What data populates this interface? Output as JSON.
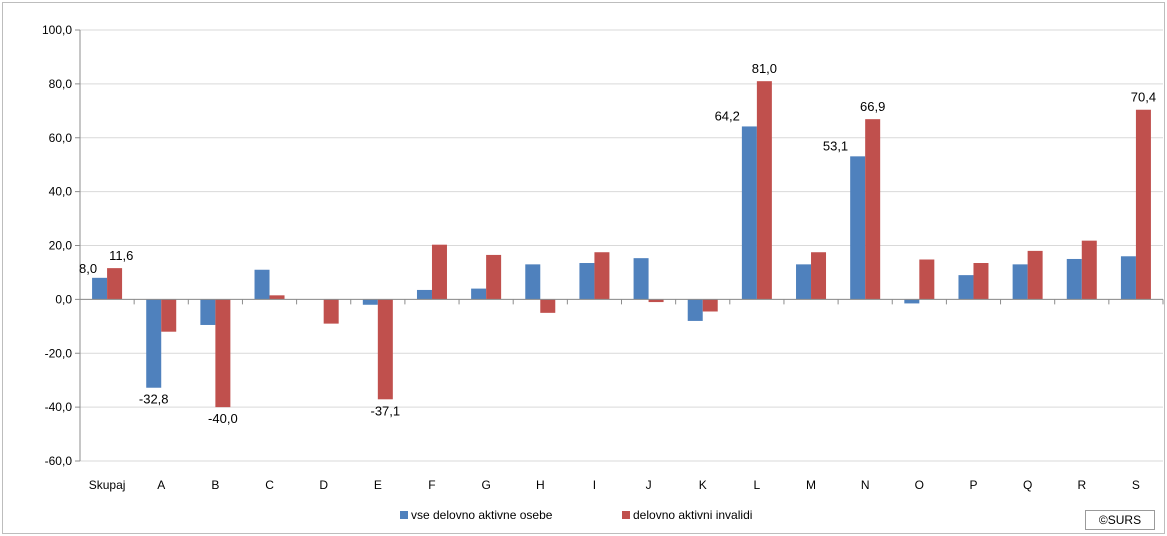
{
  "credit": "©SURS",
  "chart_data": {
    "type": "bar",
    "ylim": [
      -60,
      100
    ],
    "yticks": [
      "100,0",
      "80,0",
      "60,0",
      "40,0",
      "20,0",
      "0,0",
      "-20,0",
      "-40,0",
      "-60,0"
    ],
    "ytick_values": [
      100,
      80,
      60,
      40,
      20,
      0,
      -20,
      -40,
      -60
    ],
    "grid": true,
    "legend_position": "bottom",
    "categories": [
      "Skupaj",
      "A",
      "B",
      "C",
      "D",
      "E",
      "F",
      "G",
      "H",
      "I",
      "J",
      "K",
      "L",
      "M",
      "N",
      "O",
      "P",
      "Q",
      "R",
      "S"
    ],
    "series": [
      {
        "name": "vse delovno aktivne osebe",
        "color": "#4f81bd",
        "values": [
          8.0,
          -32.8,
          -9.5,
          11.0,
          0.0,
          -2.0,
          3.5,
          4.0,
          13.0,
          13.5,
          15.3,
          -8.0,
          64.2,
          13.0,
          53.1,
          -1.5,
          9.0,
          13.0,
          15.0,
          16.0
        ],
        "labels": [
          "8,0",
          "-32,8",
          "",
          "",
          "",
          "",
          "",
          "",
          "",
          "",
          "",
          "",
          "64,2",
          "",
          "53,1",
          "",
          "",
          "",
          "",
          ""
        ]
      },
      {
        "name": "delovno aktivni invalidi",
        "color": "#c0504d",
        "values": [
          11.6,
          -12.0,
          -40.0,
          1.5,
          -9.0,
          -37.1,
          20.3,
          16.5,
          -5.0,
          17.5,
          -1.0,
          -4.5,
          81.0,
          17.5,
          66.9,
          14.8,
          13.5,
          18.0,
          21.8,
          70.4
        ],
        "labels": [
          "11,6",
          "",
          "-40,0",
          "",
          "",
          "-37,1",
          "",
          "",
          "",
          "",
          "",
          "",
          "81,0",
          "",
          "66,9",
          "",
          "",
          "",
          "",
          "70,4"
        ]
      }
    ]
  }
}
